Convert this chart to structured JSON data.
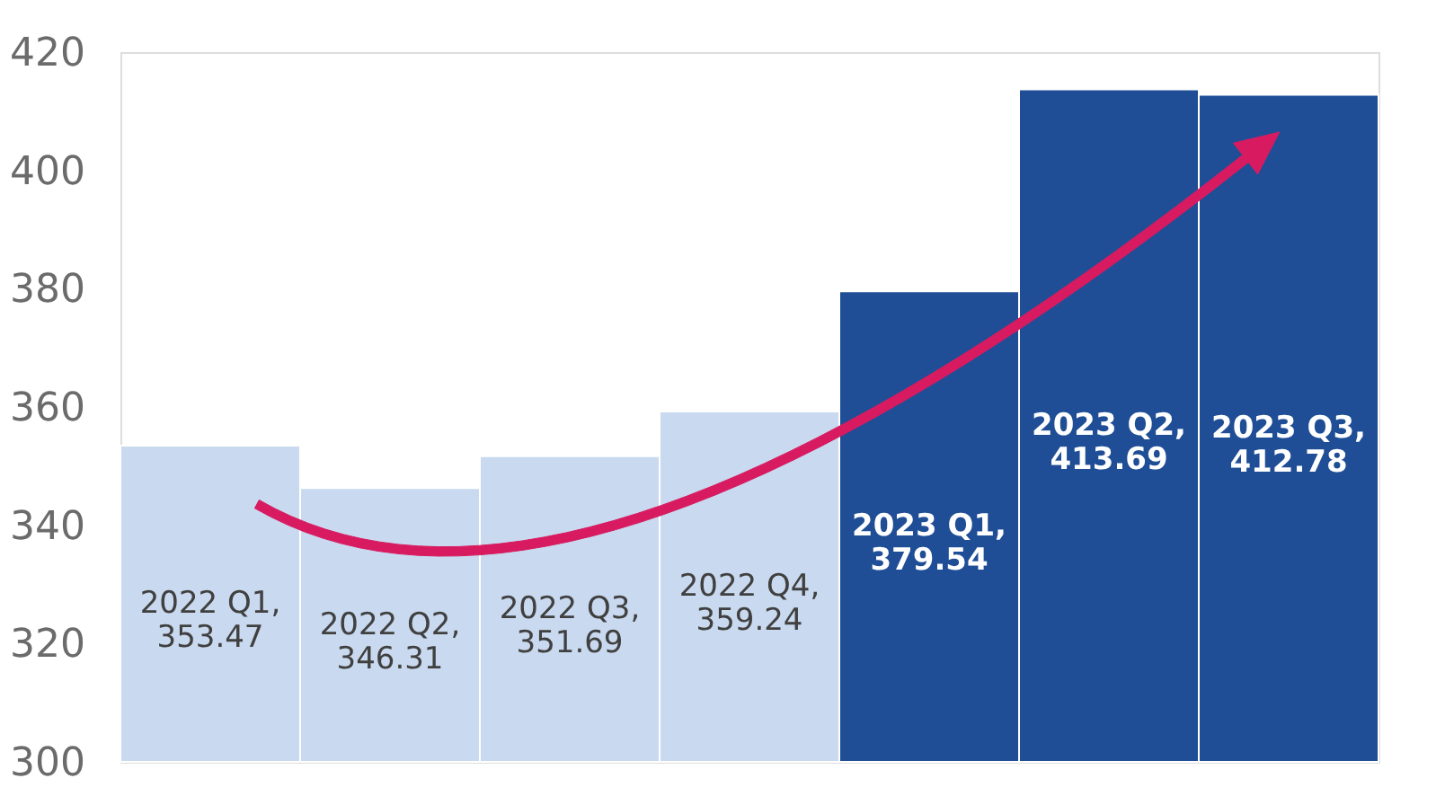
{
  "chart_data": {
    "type": "bar",
    "categories": [
      null,
      null,
      null,
      null,
      null,
      null,
      null
    ],
    "values": [
      353.47,
      346.31,
      351.69,
      359.24,
      379.54,
      413.69,
      412.78
    ],
    "colors": [
      "#c9d9ef",
      "#c9d9ef",
      "#c9d9ef",
      "#c9d9ef",
      "#1f4e96",
      "#1f4e96",
      "#1f4e96"
    ],
    "value_labels": [
      "2022 Q1,\n353.47",
      "2022 Q2,\n346.31",
      "2022 Q3,\n351.69",
      "2022 Q4,\n359.24",
      "2023 Q1,\n379.54",
      "2023 Q2,\n413.69",
      "2023 Q3,\n412.78"
    ],
    "ylim": [
      300,
      420
    ],
    "yticks": [
      300,
      320,
      340,
      360,
      380,
      400,
      420
    ],
    "grid": false,
    "tick_labels": "y"
  }
}
